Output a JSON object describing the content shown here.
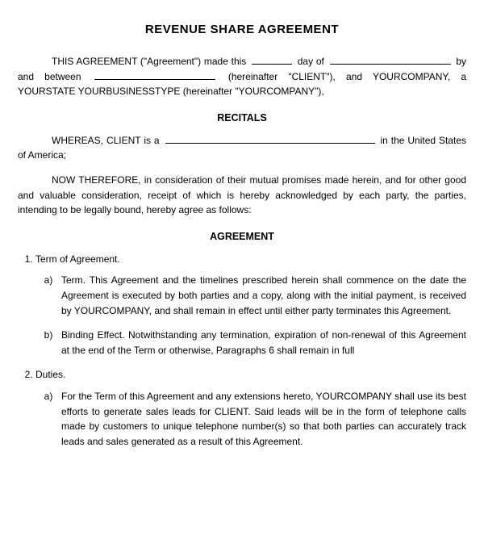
{
  "title": "REVENUE SHARE AGREEMENT",
  "intro_parts": {
    "p1": "THIS AGREEMENT (\"Agreement\") made this ",
    "p2": " day of ",
    "p3": " by and between ",
    "p4": " (hereinafter \"CLIENT\"), and YOURCOMPANY, a YOURSTATE YOURBUSINESSTYPE (hereinafter \"YOURCOMPANY\"),"
  },
  "recitals_head": "RECITALS",
  "recitals_parts": {
    "r1": "WHEREAS, CLIENT is a ",
    "r2": " in the United States of America;"
  },
  "therefore": "NOW THEREFORE, in consideration of their mutual promises made herein, and for other good and valuable consideration, receipt of which is hereby acknowledged by each party, the parties, intending to be legally bound, hereby agree as follows:",
  "agreement_head": "AGREEMENT",
  "items": [
    {
      "label": "Term of Agreement.",
      "subs": [
        {
          "text": "Term. This Agreement and the timelines prescribed herein shall commence on the date the Agreement is executed by both parties and a copy, along with the initial payment, is received by YOURCOMPANY, and shall remain in effect until either party terminates this Agreement."
        },
        {
          "text": "Binding Effect. Notwithstanding any termination, expiration of non-renewal of this Agreement at the end of the Term or otherwise, Paragraphs 6 shall remain in full"
        }
      ]
    },
    {
      "label": "Duties.",
      "subs": [
        {
          "text": "For the Term of this Agreement and any extensions hereto, YOURCOMPANY shall use its best efforts to generate sales leads for CLIENT. Said leads will be in the form of telephone calls made by customers to unique telephone number(s) so that both parties can accurately track leads and sales generated as a result of this Agreement."
        }
      ]
    }
  ]
}
